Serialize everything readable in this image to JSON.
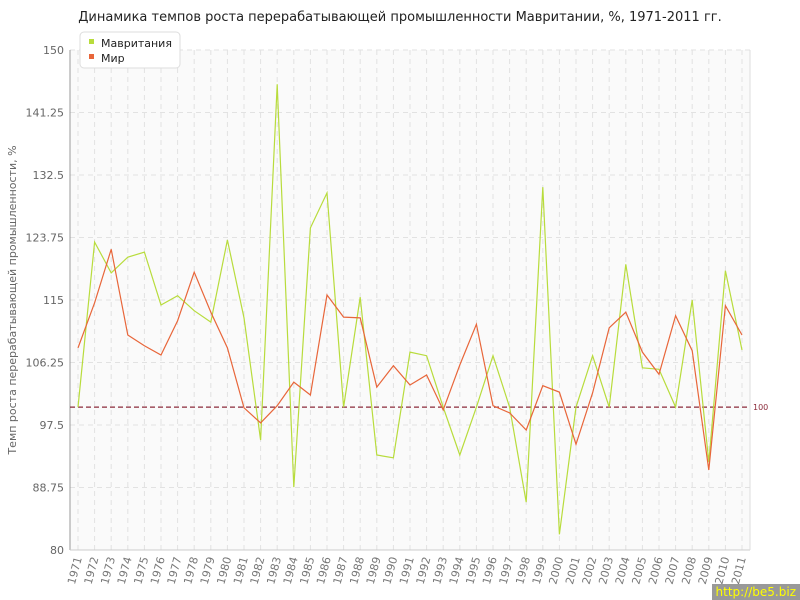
{
  "chart_data": {
    "type": "line",
    "title": "Динамика темпов роста перерабатывающей промышленности Мавритании, %, 1971-2011 гг.",
    "ylabel": "Темп роста перерабатывающей промышленности, %",
    "xlabel": "",
    "ylim": [
      80,
      150
    ],
    "yticks": [
      "80",
      "88.75",
      "97.5",
      "106.25",
      "115",
      "123.75",
      "132.5",
      "141.25",
      "150"
    ],
    "grid": true,
    "legend_placement": "top-left",
    "reference_line": {
      "value": 100,
      "label": "100",
      "color": "#8b2a3a"
    },
    "x": [
      1971,
      1972,
      1973,
      1974,
      1975,
      1976,
      1977,
      1978,
      1979,
      1980,
      1981,
      1982,
      1983,
      1984,
      1985,
      1986,
      1987,
      1988,
      1989,
      1990,
      1991,
      1992,
      1993,
      1994,
      1995,
      1996,
      1997,
      1998,
      1999,
      2000,
      2001,
      2002,
      2003,
      2004,
      2005,
      2006,
      2007,
      2008,
      2009,
      2010,
      2011
    ],
    "series": [
      {
        "name": "Мавритания",
        "color": "#b8dc3c",
        "values": [
          100,
          123.1,
          118.8,
          121.0,
          121.7,
          114.3,
          115.6,
          113.5,
          111.9,
          123.4,
          112.5,
          95.4,
          145.2,
          88.8,
          125.1,
          130.0,
          100,
          115.4,
          93.3,
          92.9,
          107.7,
          107.2,
          100,
          93.3,
          100,
          107.2,
          100,
          86.7,
          130.8,
          82.2,
          100,
          107.2,
          100,
          120.0,
          105.5,
          105.3,
          100,
          115.0,
          92.3,
          119.1,
          108.0
        ]
      },
      {
        "name": "Мир",
        "color": "#e8663a",
        "values": [
          108.3,
          114.6,
          122.1,
          110.1,
          108.6,
          107.3,
          112.1,
          118.9,
          113.3,
          108.3,
          99.9,
          97.8,
          100.2,
          103.5,
          101.7,
          115.7,
          112.6,
          112.5,
          102.8,
          105.8,
          103.1,
          104.5,
          99.6,
          105.9,
          111.6,
          100.2,
          99.2,
          96.8,
          103.0,
          102.1,
          94.8,
          102.0,
          111.1,
          113.3,
          107.7,
          104.6,
          112.8,
          107.9,
          91.2,
          114.2,
          110.1
        ]
      }
    ]
  },
  "watermark": "http://be5.biz"
}
